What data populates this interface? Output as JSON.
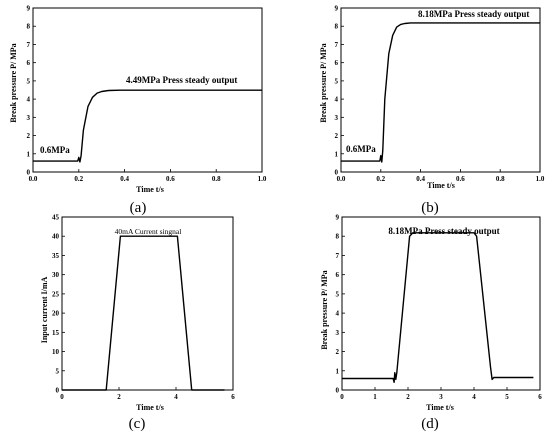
{
  "chart_data": [
    {
      "type": "line",
      "caption": "(a)",
      "xlabel": "Time t/s",
      "ylabel": "Break pressure P/ MPa",
      "xlim": [
        0.0,
        1.0
      ],
      "ylim": [
        0,
        9
      ],
      "xticks": [
        "0.0",
        "0.2",
        "0.4",
        "0.6",
        "0.8",
        "1.0"
      ],
      "yticks": [
        "0",
        "1",
        "2",
        "3",
        "4",
        "5",
        "6",
        "7",
        "8",
        "9"
      ],
      "annotations": [
        "4.49MPa Press steady output",
        "0.6MPa"
      ],
      "series": [
        {
          "x": [
            0.0,
            0.18,
            0.195,
            0.2,
            0.205,
            0.21,
            0.22,
            0.24,
            0.26,
            0.28,
            0.3,
            0.33,
            0.38,
            0.45,
            1.0
          ],
          "y": [
            0.6,
            0.6,
            0.6,
            0.8,
            0.55,
            0.9,
            2.3,
            3.6,
            4.1,
            4.33,
            4.42,
            4.47,
            4.49,
            4.49,
            4.49
          ]
        }
      ]
    },
    {
      "type": "line",
      "caption": "(b)",
      "xlabel": "Time t/s",
      "ylabel": "Break pressure P/ MPa",
      "xlim": [
        0.0,
        1.0
      ],
      "ylim": [
        0,
        9
      ],
      "xticks": [
        "0.0",
        "0.2",
        "0.4",
        "0.6",
        "0.8",
        "1.0"
      ],
      "yticks": [
        "0",
        "1",
        "2",
        "3",
        "4",
        "5",
        "6",
        "7",
        "8",
        "9"
      ],
      "annotations": [
        "8.18MPa Press steady output",
        "0.6MPa"
      ],
      "series": [
        {
          "x": [
            0.0,
            0.18,
            0.195,
            0.2,
            0.205,
            0.21,
            0.22,
            0.24,
            0.26,
            0.28,
            0.3,
            0.32,
            0.35,
            0.4,
            1.0
          ],
          "y": [
            0.6,
            0.6,
            0.6,
            0.9,
            0.55,
            1.2,
            4.0,
            6.5,
            7.5,
            7.95,
            8.1,
            8.15,
            8.18,
            8.18,
            8.18
          ]
        }
      ]
    },
    {
      "type": "line",
      "caption": "(c)",
      "xlabel": "Time t/s",
      "ylabel": "Input current I/mA",
      "xlim": [
        0,
        6
      ],
      "ylim": [
        0,
        45
      ],
      "xticks": [
        "0",
        "2",
        "4",
        "6"
      ],
      "yticks": [
        "0",
        "5",
        "10",
        "15",
        "20",
        "25",
        "30",
        "35",
        "40",
        "45"
      ],
      "annotations": [
        "40mA Current singnal"
      ],
      "series": [
        {
          "x": [
            0.0,
            1.55,
            2.05,
            4.05,
            4.55,
            5.7
          ],
          "y": [
            0,
            0,
            40,
            40,
            0,
            0
          ]
        }
      ]
    },
    {
      "type": "line",
      "caption": "(d)",
      "xlabel": "Time t/s",
      "ylabel": "Break pressure P/ MPa",
      "xlim": [
        0,
        6
      ],
      "ylim": [
        0,
        9
      ],
      "xticks": [
        "0",
        "1",
        "2",
        "3",
        "4",
        "5",
        "6"
      ],
      "yticks": [
        "0",
        "1",
        "2",
        "3",
        "4",
        "5",
        "6",
        "7",
        "8",
        "9"
      ],
      "annotations": [
        "8.18MPa Press steady output"
      ],
      "series": [
        {
          "x": [
            0.0,
            1.55,
            1.58,
            1.6,
            1.63,
            1.66,
            2.05,
            2.15,
            4.0,
            4.08,
            4.5,
            4.55,
            4.6,
            5.8
          ],
          "y": [
            0.6,
            0.6,
            0.4,
            0.9,
            0.55,
            0.9,
            8.0,
            8.18,
            8.18,
            8.0,
            1.2,
            0.55,
            0.65,
            0.65
          ]
        }
      ]
    }
  ]
}
